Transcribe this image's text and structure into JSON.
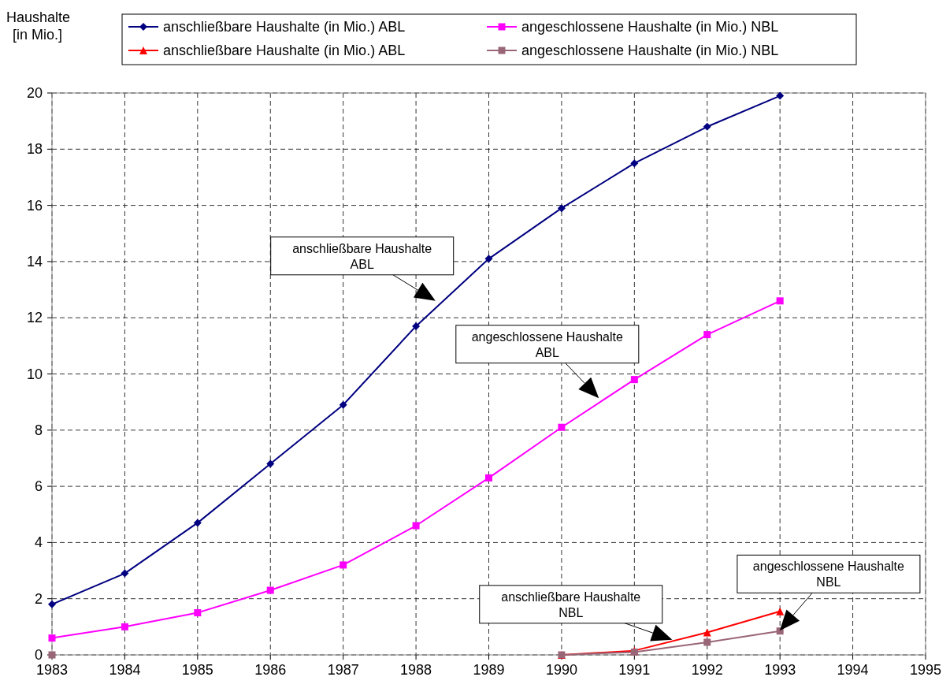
{
  "chart_data": {
    "type": "line",
    "ylabel": "Haushalte\n[in Mio.]",
    "x": [
      1983,
      1984,
      1985,
      1986,
      1987,
      1988,
      1989,
      1990,
      1991,
      1992,
      1993
    ],
    "xlim": [
      1983,
      1995
    ],
    "xticks": [
      1983,
      1984,
      1985,
      1986,
      1987,
      1988,
      1989,
      1990,
      1991,
      1992,
      1993,
      1994,
      1995
    ],
    "ylim": [
      0,
      20
    ],
    "yticks": [
      0,
      2,
      4,
      6,
      8,
      10,
      12,
      14,
      16,
      18,
      20
    ],
    "grid": true,
    "legend": "top",
    "line_style": "solid",
    "series": [
      {
        "name": "anschließbare Haushalte (in Mio.) ABL",
        "color": "#000080",
        "marker": "diamond",
        "values": [
          1.8,
          2.9,
          4.7,
          6.8,
          8.9,
          11.7,
          14.1,
          15.9,
          17.5,
          18.8,
          19.9
        ]
      },
      {
        "name": "angeschlossene Haushalte (in Mio.) NBL",
        "color": "#ff00ff",
        "marker": "square",
        "values": [
          0.6,
          1.0,
          1.5,
          2.3,
          3.2,
          4.6,
          6.3,
          8.1,
          9.8,
          11.4,
          12.6
        ]
      },
      {
        "name": "anschließbare Haushalte (in Mio.) ABL",
        "color": "#ff0000",
        "marker": "triangle",
        "values": [
          null,
          null,
          null,
          null,
          null,
          null,
          null,
          0,
          0.15,
          0.8,
          1.55
        ]
      },
      {
        "name": "angeschlossene Haushalte (in Mio.) NBL",
        "color": "#996677",
        "marker": "square",
        "values": [
          0,
          null,
          null,
          null,
          null,
          null,
          null,
          0,
          0.1,
          0.45,
          0.85
        ]
      }
    ],
    "annotations": [
      "anschließbare Haushalte\nABL",
      "angeschlossene Haushalte\nABL",
      "anschließbare Haushalte\nNBL",
      "angeschlossene Haushalte\nNBL"
    ]
  }
}
